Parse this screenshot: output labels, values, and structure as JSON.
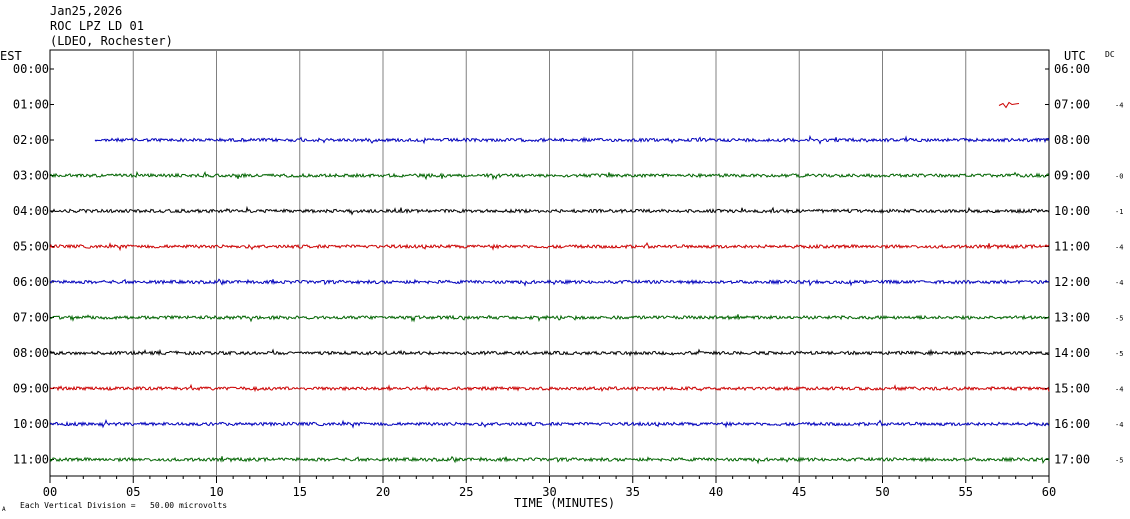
{
  "header": {
    "date": "Jan25,2026",
    "station": "ROC LPZ LD 01",
    "network": "(LDEO, Rochester)"
  },
  "left_axis_label": "EST",
  "right_axis_label": "UTC",
  "dc_label": "DC",
  "x_axis_title": "TIME (MINUTES)",
  "scale_note": "Each Vertical Division =   50.00 microvolts",
  "corner_mark": "A",
  "chart_data": {
    "type": "line",
    "title": "ROC LPZ LD 01",
    "xlabel": "TIME (MINUTES)",
    "xlim": [
      0,
      60
    ],
    "x_ticks": [
      "00",
      "05",
      "10",
      "15",
      "20",
      "25",
      "30",
      "35",
      "40",
      "45",
      "50",
      "55",
      "60"
    ],
    "grid": true,
    "traces": [
      {
        "est": "00:00",
        "utc": "06:00",
        "dc": "",
        "color": "#cc0000",
        "start_min": null,
        "end_min": null
      },
      {
        "est": "01:00",
        "utc": "07:00",
        "dc": "-4",
        "color": "#cc0000",
        "start_min": 57.0,
        "end_min": 58.2
      },
      {
        "est": "02:00",
        "utc": "08:00",
        "dc": "",
        "color": "#0000bb",
        "start_min": 2.7,
        "end_min": 60
      },
      {
        "est": "03:00",
        "utc": "09:00",
        "dc": "-0",
        "color": "#006400",
        "start_min": 0,
        "end_min": 60
      },
      {
        "est": "04:00",
        "utc": "10:00",
        "dc": "-1",
        "color": "#000000",
        "start_min": 0,
        "end_min": 60
      },
      {
        "est": "05:00",
        "utc": "11:00",
        "dc": "-4",
        "color": "#cc0000",
        "start_min": 0,
        "end_min": 60
      },
      {
        "est": "06:00",
        "utc": "12:00",
        "dc": "-4",
        "color": "#0000bb",
        "start_min": 0,
        "end_min": 60
      },
      {
        "est": "07:00",
        "utc": "13:00",
        "dc": "-5",
        "color": "#006400",
        "start_min": 0,
        "end_min": 60
      },
      {
        "est": "08:00",
        "utc": "14:00",
        "dc": "-5",
        "color": "#000000",
        "start_min": 0,
        "end_min": 60
      },
      {
        "est": "09:00",
        "utc": "15:00",
        "dc": "-4",
        "color": "#cc0000",
        "start_min": 0,
        "end_min": 60
      },
      {
        "est": "10:00",
        "utc": "16:00",
        "dc": "-4",
        "color": "#0000bb",
        "start_min": 0,
        "end_min": 60
      },
      {
        "est": "11:00",
        "utc": "17:00",
        "dc": "-5",
        "color": "#006400",
        "start_min": 0,
        "end_min": 60
      }
    ]
  }
}
